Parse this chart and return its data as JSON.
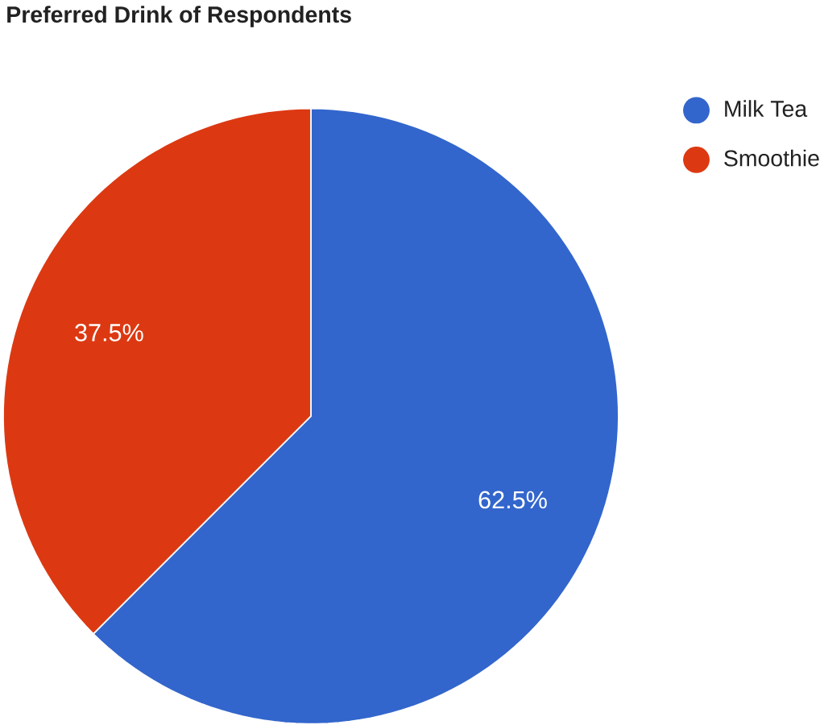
{
  "chart_data": {
    "type": "pie",
    "title": "Preferred Drink of Respondents",
    "categories": [
      "Milk Tea",
      "Smoothie"
    ],
    "values": [
      62.5,
      37.5
    ],
    "colors": [
      "#3366cc",
      "#dc3912"
    ],
    "value_labels": [
      "62.5%",
      "37.5%"
    ],
    "legend": "top right"
  }
}
